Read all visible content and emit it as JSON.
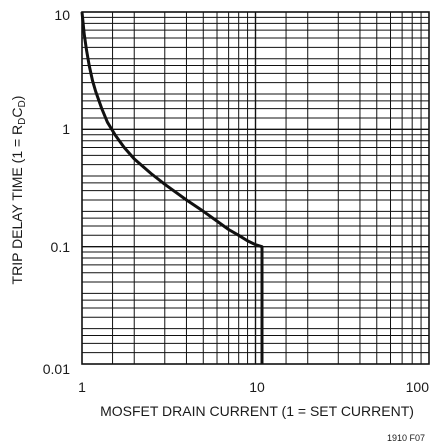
{
  "chart_data": {
    "type": "line",
    "xlabel": "MOSFET DRAIN CURRENT (1 = SET CURRENT)",
    "ylabel": "TRIP DELAY TIME (1 = RDCD)",
    "ylabel_parts": {
      "prefix": "TRIP DELAY TIME (1 = R",
      "sub1": "D",
      "mid": "C",
      "sub2": "D",
      "suffix": ")"
    },
    "x_scale": "log",
    "y_scale": "log",
    "xlim": [
      1,
      100
    ],
    "ylim": [
      0.01,
      10
    ],
    "x_tick_labels": [
      "1",
      "10",
      "100"
    ],
    "y_tick_labels": [
      "10",
      "1",
      "0.1",
      "0.01"
    ],
    "grid": true,
    "figure_id": "1910 F07",
    "line_color": "#111111",
    "series": [
      {
        "x": [
          1.0,
          1.03,
          1.06,
          1.1,
          1.15,
          1.2,
          1.3,
          1.4,
          1.55,
          1.75,
          2.0,
          2.5,
          3.0,
          4.0,
          5.0,
          6.0,
          7.0,
          8.0,
          9.0,
          10.0,
          10.9,
          10.9
        ],
        "y": [
          10.0,
          6.5,
          4.8,
          3.5,
          2.6,
          2.1,
          1.5,
          1.15,
          0.9,
          0.7,
          0.56,
          0.42,
          0.34,
          0.25,
          0.2,
          0.165,
          0.14,
          0.125,
          0.112,
          0.104,
          0.1,
          0.01
        ]
      }
    ]
  }
}
